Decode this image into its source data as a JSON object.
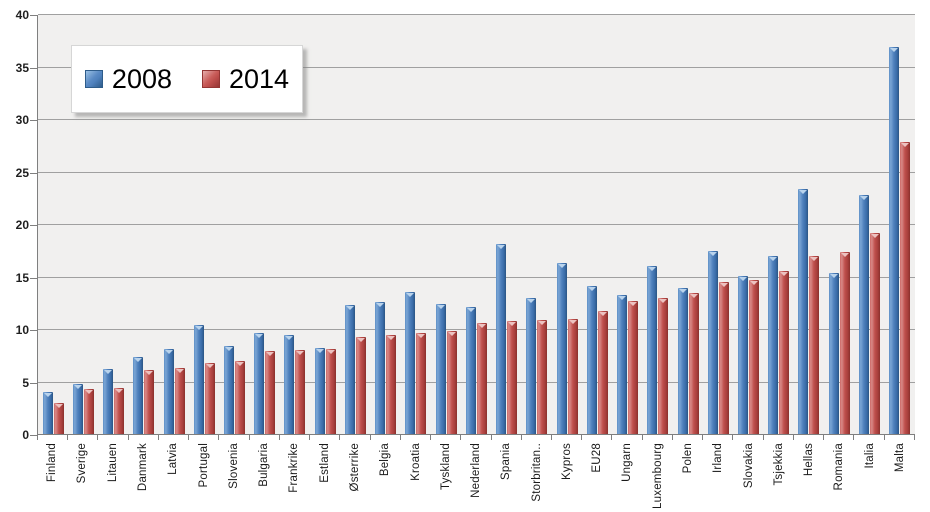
{
  "chart_data": {
    "type": "bar",
    "title": "",
    "xlabel": "",
    "ylabel": "",
    "ylim": [
      0,
      40
    ],
    "ytick_step": 5,
    "ytick_labels": [
      "0",
      "5",
      "10",
      "15",
      "20",
      "25",
      "30",
      "35",
      "40"
    ],
    "grid": true,
    "legend_position": "top-left",
    "plot_background": "#f1f0ef",
    "gridline_color": "#a0a0a0",
    "categories": [
      "Finland",
      "Sverige",
      "Litauen",
      "Danmark",
      "Latvia",
      "Portugal",
      "Slovenia",
      "Bulgaria",
      "Frankrike",
      "Estland",
      "Østerrike",
      "Belgia",
      "Kroatia",
      "Tyskland",
      "Nederland",
      "Spania",
      "Storbritan..",
      "Kypros",
      "EU28",
      "Ungarn",
      "Luxembourg",
      "Polen",
      "Irland",
      "Slovakia",
      "Tsjekkia",
      "Hellas",
      "Romania",
      "Italia",
      "Malta"
    ],
    "series": [
      {
        "name": "2008",
        "color": "#4F81BD",
        "values": [
          4.0,
          4.8,
          6.2,
          7.4,
          8.1,
          10.4,
          8.4,
          9.6,
          9.5,
          8.2,
          12.3,
          12.6,
          13.6,
          12.4,
          12.1,
          18.1,
          13.0,
          16.3,
          14.1,
          13.3,
          16.0,
          13.9,
          17.5,
          15.1,
          17.0,
          23.4,
          15.4,
          22.8,
          36.9
        ]
      },
      {
        "name": "2014",
        "color": "#C0504D",
        "values": [
          3.0,
          4.3,
          4.4,
          6.1,
          6.3,
          6.8,
          7.0,
          7.9,
          8.0,
          8.1,
          9.3,
          9.5,
          9.6,
          9.8,
          10.6,
          10.8,
          10.9,
          11.0,
          11.7,
          12.7,
          13.0,
          13.5,
          14.5,
          14.7,
          15.6,
          17.0,
          17.4,
          19.2,
          27.9
        ]
      }
    ]
  }
}
